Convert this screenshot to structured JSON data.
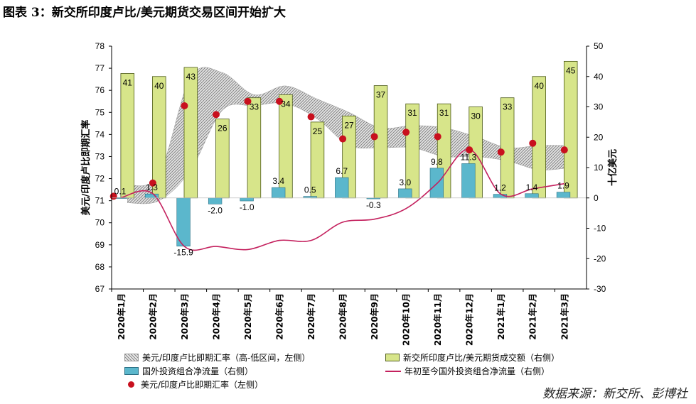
{
  "title": "图表 3：新交所印度卢比/美元期货交易区间开始扩大",
  "source": "数据来源：新交所、彭博社",
  "colors": {
    "volume_bar": "#d7e58a",
    "flow_bar": "#5bb7cc",
    "cumulative_line": "#c4215e",
    "rate_dot": "#c8101e",
    "band": "#8a8a8a"
  },
  "legend": {
    "band": "美元/印度卢比即期汇率（高-低区间，左侧）",
    "volume": "新交所印度卢比/美元期货成交额（右侧）",
    "flow": "国外投资组合净流量（右侧）",
    "cumulative": "年初至今国外投资组合净流量（右侧）",
    "rate": "美元/印度卢比即期汇率（左侧）"
  },
  "chart_data": {
    "type": "bar",
    "categories": [
      "2020年1月",
      "2020年2月",
      "2020年3月",
      "2020年4月",
      "2020年5月",
      "2020年6月",
      "2020年7月",
      "2020年8月",
      "2020年9月",
      "2020年10月",
      "2020年11月",
      "2020年12月",
      "2021年1月",
      "2021年2月",
      "2021年3月"
    ],
    "left_axis": {
      "label": "美元/印度卢比即期汇率",
      "min": 67,
      "max": 78,
      "ticks": [
        67,
        68,
        69,
        70,
        71,
        72,
        73,
        74,
        75,
        76,
        77,
        78
      ]
    },
    "right_axis": {
      "label": "十亿美元",
      "min": -30,
      "max": 50,
      "ticks": [
        -30,
        -20,
        -10,
        0,
        10,
        20,
        30,
        40,
        50
      ]
    },
    "series": [
      {
        "name": "新交所印度卢比/美元期货成交额（右侧）",
        "axis": "right",
        "type": "bar",
        "values": [
          41,
          40,
          43,
          26,
          33,
          34,
          25,
          27,
          37,
          31,
          31,
          30,
          33,
          40,
          45
        ],
        "labels": [
          "41",
          "40",
          "43",
          "26",
          "33",
          "34",
          "25",
          "27",
          "37",
          "31",
          "31",
          "30",
          "33",
          "40",
          "45"
        ]
      },
      {
        "name": "国外投资组合净流量（右侧）",
        "axis": "right",
        "type": "bar",
        "values": [
          0.1,
          1.3,
          -15.9,
          -2.0,
          -1.0,
          3.4,
          0.5,
          6.7,
          -0.3,
          3.0,
          9.8,
          11.3,
          1.2,
          1.4,
          1.9
        ],
        "labels": [
          "0.1",
          "1.3",
          "-15.9",
          "-2.0",
          "-1.0",
          "3.4",
          "0.5",
          "6.7",
          "-0.3",
          "3.0",
          "9.8",
          "11.3",
          "1.2",
          "1.4",
          "1.9"
        ]
      },
      {
        "name": "年初至今国外投资组合净流量（右侧）",
        "axis": "right",
        "type": "line",
        "values": [
          0.1,
          1.4,
          -16,
          -16,
          -17,
          -14,
          -14,
          -8,
          -7,
          -3.5,
          5,
          16,
          1.2,
          3,
          4.7
        ]
      },
      {
        "name": "美元/印度卢比即期汇率（左侧）",
        "axis": "left",
        "type": "scatter",
        "values": [
          71.2,
          71.8,
          75.3,
          74.9,
          75.5,
          75.5,
          74.8,
          73.8,
          73.9,
          74.1,
          73.9,
          73.3,
          73.2,
          73.6,
          73.3
        ]
      },
      {
        "name": "美元/印度卢比即期汇率（高-低区间，左侧）",
        "axis": "left",
        "type": "area",
        "high": [
          71.7,
          72.2,
          76.6,
          76.8,
          75.8,
          76.2,
          75.6,
          75.0,
          74.3,
          74.4,
          74.3,
          73.9,
          73.4,
          73.5,
          73.5
        ],
        "low": [
          70.9,
          71.0,
          72.4,
          75.1,
          75.3,
          75.4,
          74.7,
          73.5,
          73.4,
          73.4,
          73.0,
          73.0,
          72.8,
          72.4,
          72.5
        ]
      }
    ],
    "grid": false
  }
}
